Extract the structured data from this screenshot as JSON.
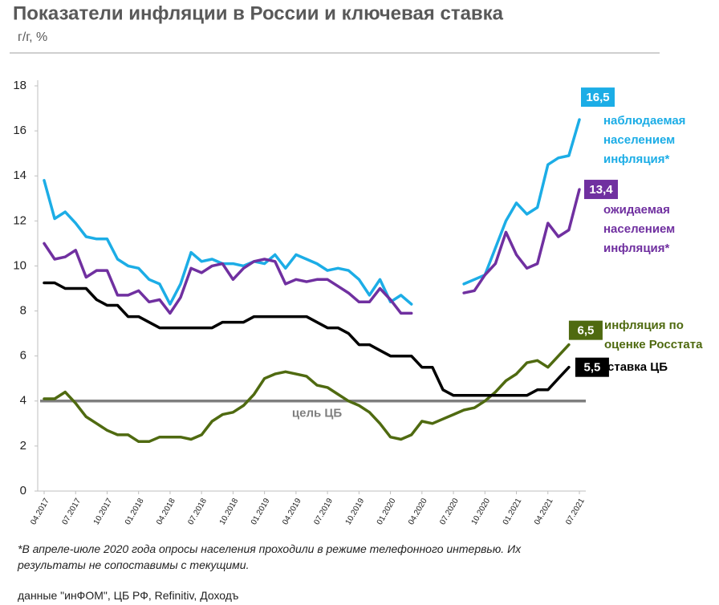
{
  "chart_data": {
    "type": "line",
    "title": "Показатели инфляции в России и ключевая ставка",
    "subtitle": "г/г, %",
    "footnote": "*В апреле-июле 2020 года опросы населения проходили в режиме телефонного интервью. Их результаты не сопоставимы с текущими.",
    "source": "данные \"инФОМ\", ЦБ РФ, Refinitiv, Доходъ",
    "categories": [
      "04.2017",
      null,
      null,
      "07.2017",
      null,
      null,
      "10.2017",
      null,
      null,
      "01.2018",
      null,
      null,
      "04.2018",
      null,
      null,
      "07.2018",
      null,
      null,
      "10.2018",
      null,
      null,
      "01.2019",
      null,
      null,
      "04.2019",
      null,
      null,
      "07.2019",
      null,
      null,
      "10.2019",
      null,
      null,
      "01.2020",
      null,
      null,
      "04.2020",
      null,
      null,
      "07.2020",
      null,
      null,
      "10.2020",
      null,
      null,
      "01.2021",
      null,
      null,
      "04.2021",
      null,
      null,
      "07.2021"
    ],
    "ylim": [
      0,
      18
    ],
    "yticks": [
      0,
      2,
      4,
      6,
      8,
      10,
      12,
      14,
      16,
      18
    ],
    "grid": false,
    "target": {
      "value": 4,
      "label": "цель ЦБ",
      "color": "#7f7f7f"
    },
    "series": [
      {
        "name": "наблюдаемая населением инфляция*",
        "color": "#1cade6",
        "values": [
          13.8,
          12.1,
          12.4,
          11.9,
          11.3,
          11.2,
          11.2,
          10.3,
          10.0,
          9.9,
          9.4,
          9.2,
          8.3,
          9.2,
          10.6,
          10.2,
          10.3,
          10.1,
          10.1,
          10.0,
          10.2,
          10.1,
          10.5,
          9.9,
          10.5,
          10.3,
          10.1,
          9.8,
          9.9,
          9.8,
          9.4,
          8.7,
          9.4,
          8.4,
          8.7,
          8.3,
          null,
          null,
          null,
          null,
          9.2,
          9.4,
          9.6,
          10.8,
          12.0,
          12.8,
          12.3,
          12.6,
          14.5,
          14.8,
          14.9,
          16.5
        ],
        "value_labels": [
          null,
          null,
          null,
          null,
          null,
          null,
          null,
          null,
          null,
          null,
          null,
          null,
          null,
          null,
          null,
          null,
          null,
          null,
          null,
          null,
          null,
          null,
          null,
          null,
          null,
          null,
          null,
          null,
          null,
          null,
          null,
          null,
          null,
          null,
          null,
          null,
          null,
          null,
          null,
          null,
          null,
          null,
          null,
          null,
          null,
          null,
          null,
          null,
          null,
          null,
          null,
          "16,5"
        ]
      },
      {
        "name": "ожидаемая населением инфляция*",
        "color": "#7030a0",
        "values": [
          11.0,
          10.3,
          10.4,
          10.7,
          9.5,
          9.8,
          9.8,
          8.7,
          8.7,
          8.9,
          8.4,
          8.5,
          7.9,
          8.6,
          9.9,
          9.7,
          10.0,
          10.1,
          9.4,
          9.9,
          10.2,
          10.3,
          10.2,
          9.2,
          9.4,
          9.3,
          9.4,
          9.4,
          9.1,
          8.8,
          8.4,
          8.4,
          9.0,
          8.5,
          7.9,
          7.9,
          null,
          null,
          null,
          null,
          8.8,
          8.9,
          9.6,
          10.1,
          11.5,
          10.5,
          9.9,
          10.1,
          11.9,
          11.3,
          11.6,
          13.4
        ],
        "value_labels": [
          null,
          null,
          null,
          null,
          null,
          null,
          null,
          null,
          null,
          null,
          null,
          null,
          null,
          null,
          null,
          null,
          null,
          null,
          null,
          null,
          null,
          null,
          null,
          null,
          null,
          null,
          null,
          null,
          null,
          null,
          null,
          null,
          null,
          null,
          null,
          null,
          null,
          null,
          null,
          null,
          null,
          null,
          null,
          null,
          null,
          null,
          null,
          null,
          null,
          null,
          null,
          "13,4"
        ]
      },
      {
        "name": "инфляция по оценке Росстата",
        "color": "#4f6a10",
        "values": [
          4.1,
          4.1,
          4.4,
          3.9,
          3.3,
          3.0,
          2.7,
          2.5,
          2.5,
          2.2,
          2.2,
          2.4,
          2.4,
          2.4,
          2.3,
          2.5,
          3.1,
          3.4,
          3.5,
          3.8,
          4.3,
          5.0,
          5.2,
          5.3,
          5.2,
          5.1,
          4.7,
          4.6,
          4.3,
          4.0,
          3.8,
          3.5,
          3.0,
          2.4,
          2.3,
          2.5,
          3.1,
          3.0,
          3.2,
          3.4,
          3.6,
          3.7,
          4.0,
          4.4,
          4.9,
          5.2,
          5.7,
          5.8,
          5.5,
          6.0,
          6.5,
          null
        ],
        "value_labels": [
          null,
          null,
          null,
          null,
          null,
          null,
          null,
          null,
          null,
          null,
          null,
          null,
          null,
          null,
          null,
          null,
          null,
          null,
          null,
          null,
          null,
          null,
          null,
          null,
          null,
          null,
          null,
          null,
          null,
          null,
          null,
          null,
          null,
          null,
          null,
          null,
          null,
          null,
          null,
          null,
          null,
          null,
          null,
          null,
          null,
          null,
          null,
          null,
          null,
          null,
          "6,5",
          null
        ]
      },
      {
        "name": "ставка ЦБ",
        "color": "#000000",
        "values": [
          9.25,
          9.25,
          9.0,
          9.0,
          9.0,
          8.5,
          8.25,
          8.25,
          7.75,
          7.75,
          7.5,
          7.25,
          7.25,
          7.25,
          7.25,
          7.25,
          7.25,
          7.5,
          7.5,
          7.5,
          7.75,
          7.75,
          7.75,
          7.75,
          7.75,
          7.75,
          7.5,
          7.25,
          7.25,
          7.0,
          6.5,
          6.5,
          6.25,
          6.0,
          6.0,
          6.0,
          5.5,
          5.5,
          4.5,
          4.25,
          4.25,
          4.25,
          4.25,
          4.25,
          4.25,
          4.25,
          4.25,
          4.5,
          4.5,
          5.0,
          5.5,
          null
        ],
        "value_labels": [
          null,
          null,
          null,
          null,
          null,
          null,
          null,
          null,
          null,
          null,
          null,
          null,
          null,
          null,
          null,
          null,
          null,
          null,
          null,
          null,
          null,
          null,
          null,
          null,
          null,
          null,
          null,
          null,
          null,
          null,
          null,
          null,
          null,
          null,
          null,
          null,
          null,
          null,
          null,
          null,
          null,
          null,
          null,
          null,
          null,
          null,
          null,
          null,
          null,
          null,
          "5,5",
          null
        ]
      }
    ]
  }
}
